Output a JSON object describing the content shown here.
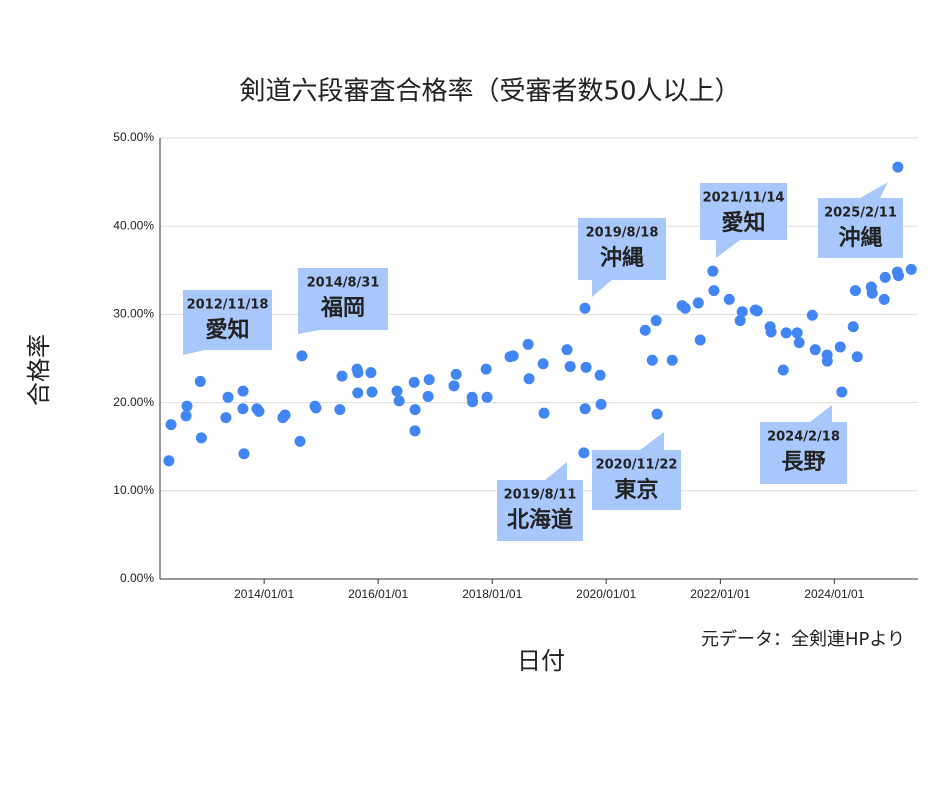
{
  "chart_data": {
    "type": "scatter",
    "title": "剣道六段審査合格率（受審者数50人以上）",
    "x_label": "日付",
    "y_label": "合格率",
    "source": "元データ：全剣連HPより",
    "color": "#4285f4",
    "grid": true,
    "xlim": [
      "2012/03/05",
      "2025/06/20"
    ],
    "xticks": [
      "2014/01/01",
      "2016/01/01",
      "2018/01/01",
      "2020/01/01",
      "2022/01/01",
      "2024/01/01"
    ],
    "ylim": [
      0,
      50
    ],
    "yticks": [
      {
        "value": 0,
        "label": "0.00%"
      },
      {
        "value": 10,
        "label": "10.00%"
      },
      {
        "value": 20,
        "label": "20.00%"
      },
      {
        "value": 30,
        "label": "30.00%"
      },
      {
        "value": 40,
        "label": "40.00%"
      },
      {
        "value": 50,
        "label": "50.00%"
      }
    ],
    "x": [
      "2012/05/01",
      "2012/05/15",
      "2012/08/19",
      "2012/08/25",
      "2012/11/18",
      "2012/11/25",
      "2013/05/01",
      "2013/05/15",
      "2013/08/19",
      "2013/08/18",
      "2013/08/25",
      "2013/11/16",
      "2013/11/29",
      "2014/05/01",
      "2014/05/15",
      "2014/08/19",
      "2014/08/31",
      "2014/11/23",
      "2014/11/29",
      "2015/05/01",
      "2015/05/15",
      "2015/08/19",
      "2015/08/25",
      "2015/08/24",
      "2015/11/16",
      "2015/11/23",
      "2016/05/01",
      "2016/05/15",
      "2016/08/19",
      "2016/08/25",
      "2016/08/24",
      "2016/11/23",
      "2016/11/16",
      "2017/05/01",
      "2017/05/15",
      "2017/08/25",
      "2017/08/28",
      "2017/11/23",
      "2017/11/29",
      "2018/04/25",
      "2018/05/15",
      "2018/08/19",
      "2018/08/25",
      "2018/11/23",
      "2018/11/29",
      "2019/04/25",
      "2019/05/15",
      "2019/08/11",
      "2019/08/18",
      "2019/08/19",
      "2019/08/25",
      "2019/11/23",
      "2019/11/29",
      "2020/09/07",
      "2020/10/22",
      "2020/11/16",
      "2020/11/22",
      "2021/02/27",
      "2021/05/01",
      "2021/05/21",
      "2021/08/13",
      "2021/08/25",
      "2021/11/14",
      "2021/11/21",
      "2022/02/27",
      "2022/05/08",
      "2022/05/21",
      "2022/08/13",
      "2022/08/25",
      "2022/11/16",
      "2022/11/22",
      "2023/02/08",
      "2023/02/27",
      "2023/05/08",
      "2023/05/21",
      "2023/08/13",
      "2023/09/01",
      "2023/11/16",
      "2023/11/17",
      "2024/02/08",
      "2024/02/18",
      "2024/05/01",
      "2024/05/15",
      "2024/05/27",
      "2024/08/25",
      "2024/08/31",
      "2024/11/16",
      "2024/11/22",
      "2025/02/08",
      "2025/02/15",
      "2025/02/11",
      "2025/05/08"
    ],
    "values": [
      13.4,
      17.5,
      18.5,
      19.6,
      22.4,
      16.0,
      18.3,
      20.6,
      21.3,
      19.3,
      14.2,
      19.3,
      19.0,
      18.3,
      18.6,
      15.6,
      25.3,
      19.6,
      19.4,
      19.2,
      23.0,
      23.8,
      23.4,
      21.1,
      23.4,
      21.2,
      21.3,
      20.2,
      22.3,
      19.2,
      16.8,
      22.6,
      20.7,
      21.9,
      23.2,
      20.6,
      20.1,
      23.8,
      20.6,
      25.2,
      25.3,
      26.6,
      22.7,
      24.4,
      18.8,
      26.0,
      24.1,
      14.3,
      30.7,
      19.3,
      24.0,
      23.1,
      19.8,
      28.2,
      24.8,
      29.3,
      18.7,
      24.8,
      31.0,
      30.7,
      31.3,
      27.1,
      34.9,
      32.7,
      31.7,
      29.3,
      30.3,
      30.5,
      30.4,
      28.6,
      28.0,
      23.7,
      27.9,
      27.9,
      26.8,
      29.9,
      26.0,
      25.4,
      24.7,
      26.3,
      21.2,
      28.6,
      32.7,
      25.2,
      33.1,
      32.4,
      31.7,
      34.2,
      34.8,
      34.4,
      46.7,
      35.1
    ],
    "annotations": [
      {
        "date": "2012/11/18",
        "place": "愛知"
      },
      {
        "date": "2014/8/31",
        "place": "福岡"
      },
      {
        "date": "2019/8/18",
        "place": "沖縄"
      },
      {
        "date": "2021/11/14",
        "place": "愛知"
      },
      {
        "date": "2025/2/11",
        "place": "沖縄"
      },
      {
        "date": "2020/11/22",
        "place": "東京"
      },
      {
        "date": "2024/2/18",
        "place": "長野"
      },
      {
        "date": "2019/8/11",
        "place": "北海道"
      }
    ]
  }
}
